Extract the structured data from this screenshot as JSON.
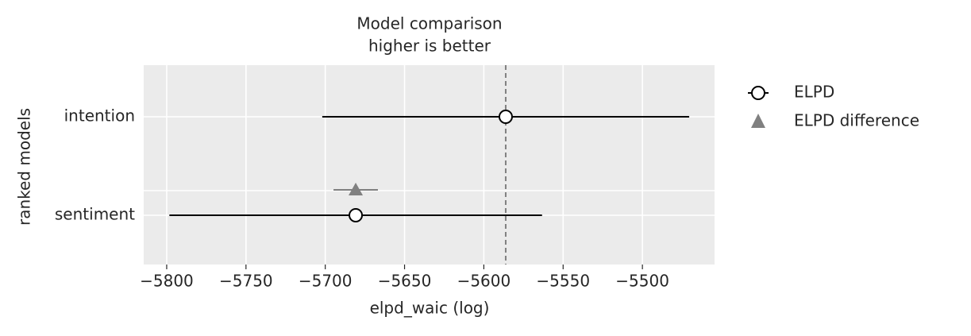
{
  "chart_data": {
    "type": "compare",
    "title": "Model comparison",
    "subtitle": "higher is better",
    "x_label": "elpd_waic (log)",
    "y_label": "ranked models",
    "categories": [
      "intention",
      "sentiment"
    ],
    "series": [
      {
        "name": "ELPD",
        "color": "#000000",
        "values": [
          -5586.2,
          -5680.8
        ],
        "errors": [
          115.7,
          117.5
        ]
      },
      {
        "name": "ELPD difference",
        "color": "#808080",
        "values": [
          null,
          -5680.8
        ],
        "errors": [
          null,
          14
        ]
      }
    ],
    "xlim": [
      -5814.5,
      -5454.5
    ],
    "xticks": [
      {
        "value": -5800,
        "label": "−5800"
      },
      {
        "value": -5750,
        "label": "−5750"
      },
      {
        "value": -5700,
        "label": "−5700"
      },
      {
        "value": -5650,
        "label": "−5650"
      },
      {
        "value": -5600,
        "label": "−5600"
      },
      {
        "value": -5550,
        "label": "−5550"
      },
      {
        "value": -5500,
        "label": "−5500"
      }
    ],
    "grid": true
  }
}
